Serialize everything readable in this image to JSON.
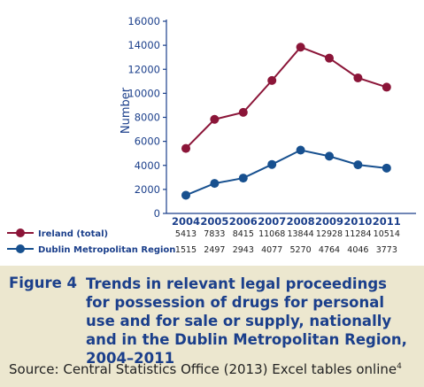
{
  "chart_data": {
    "type": "line",
    "title": "",
    "xlabel": "",
    "ylabel": "Number",
    "ylim": [
      0,
      16000
    ],
    "yticks": [
      "0",
      "2000",
      "4000",
      "6000",
      "8000",
      "10000",
      "12000",
      "14000",
      "16000"
    ],
    "categories": [
      "2004",
      "2005",
      "2006",
      "2007",
      "2008",
      "2009",
      "2010",
      "2011"
    ],
    "series": [
      {
        "name": "Ireland (total)",
        "color": "#8b1538",
        "values": [
          5413,
          7833,
          8415,
          11068,
          13844,
          12928,
          11284,
          10514
        ],
        "labels": [
          "5413",
          "7833",
          "8415",
          "11068",
          "13844",
          "12928",
          "11284",
          "10514"
        ]
      },
      {
        "name": "Dublin Metropolitan Region",
        "color": "#17508f",
        "values": [
          1515,
          2497,
          2943,
          4077,
          5270,
          4764,
          4046,
          3773
        ],
        "labels": [
          "1515",
          "2497",
          "2943",
          "4077",
          "5270",
          "4764",
          "4046",
          "3773"
        ]
      }
    ],
    "grid": false,
    "legend": "bottom-left table"
  },
  "caption": {
    "figure_label": "Figure 4",
    "text": "Trends in relevant legal proceedings for possession of drugs for personal use and for sale or supply, nationally and in the Dublin Metropolitan Region, 2004–2011",
    "source": "Source: Central Statistics Office (2013) Excel tables online",
    "source_note": "4"
  },
  "colors": {
    "axis": "#1b3f8b",
    "caption_background": "#ece7cf"
  }
}
